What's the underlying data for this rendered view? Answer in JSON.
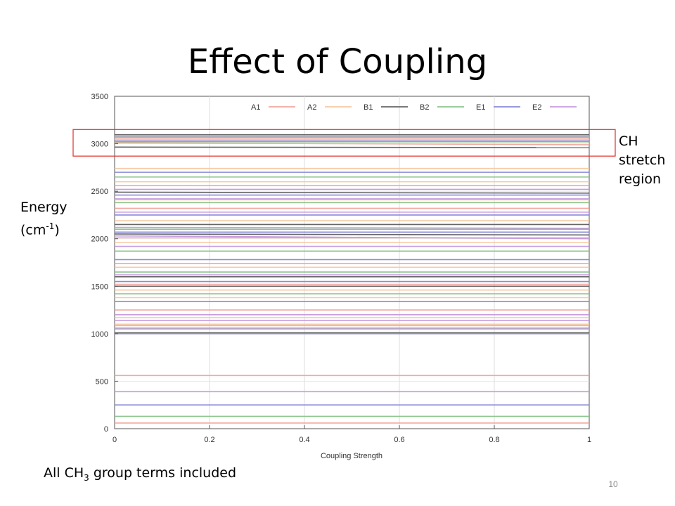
{
  "slide": {
    "title": "Effect of Coupling",
    "energy_label": "Energy",
    "energy_unit_pre": "(cm",
    "energy_unit_sup": "-1",
    "energy_unit_post": ")",
    "region_line1": "CH",
    "region_line2": "stretch",
    "region_line3": "region",
    "note_pre": "All CH",
    "note_sub": "3",
    "note_post": " group terms included",
    "page_number": "10"
  },
  "colors": {
    "A1": "#f2a8a0",
    "A2": "#f7c9a3",
    "B1": "#666666",
    "B2": "#8dc48d",
    "E1": "#8a8ad8",
    "E2": "#c79be0",
    "highlight": "#e0302a"
  },
  "chart_data": {
    "type": "line",
    "xlabel": "Coupling Strength",
    "ylabel": "",
    "xlim": [
      0,
      1
    ],
    "ylim": [
      0,
      3500
    ],
    "xticks": [
      0,
      0.2,
      0.4,
      0.6,
      0.8,
      1
    ],
    "yticks": [
      0,
      500,
      1000,
      1500,
      2000,
      2500,
      3000,
      3500
    ],
    "grid": true,
    "legend_position": "top",
    "legend": [
      "A1",
      "A2",
      "B1",
      "B2",
      "E1",
      "E2"
    ],
    "x": [
      0,
      1
    ],
    "series": [
      {
        "name": "A1",
        "levels": [
          [
            3060,
            3060
          ],
          [
            3010,
            2990
          ],
          [
            2560,
            2560
          ],
          [
            2320,
            2320
          ],
          [
            2010,
            2010
          ],
          [
            1740,
            1740
          ],
          [
            1520,
            1520
          ],
          [
            1250,
            1250
          ],
          [
            1085,
            1085
          ],
          [
            560,
            560
          ],
          [
            60,
            60
          ]
        ]
      },
      {
        "name": "A2",
        "levels": [
          [
            3045,
            3045
          ],
          [
            2740,
            2740
          ],
          [
            2600,
            2600
          ],
          [
            2410,
            2410
          ],
          [
            2190,
            2190
          ],
          [
            1960,
            1960
          ],
          [
            1700,
            1700
          ],
          [
            1460,
            1460
          ],
          [
            1380,
            1380
          ],
          [
            1170,
            1170
          ],
          [
            1100,
            1100
          ]
        ]
      },
      {
        "name": "B1",
        "levels": [
          [
            3095,
            3095
          ],
          [
            2965,
            2960
          ],
          [
            2490,
            2480
          ],
          [
            2150,
            2150
          ],
          [
            2050,
            2040
          ],
          [
            1600,
            1600
          ],
          [
            1500,
            1500
          ],
          [
            1010,
            1010
          ]
        ]
      },
      {
        "name": "B2",
        "levels": [
          [
            3080,
            3080
          ],
          [
            3020,
            3020
          ],
          [
            2650,
            2650
          ],
          [
            2380,
            2380
          ],
          [
            2100,
            2100
          ],
          [
            1870,
            1870
          ],
          [
            1650,
            1650
          ],
          [
            1420,
            1420
          ],
          [
            1060,
            1060
          ],
          [
            130,
            130
          ]
        ]
      },
      {
        "name": "E1",
        "levels": [
          [
            3030,
            3030
          ],
          [
            2700,
            2700
          ],
          [
            2460,
            2460
          ],
          [
            2250,
            2250
          ],
          [
            2070,
            2070
          ],
          [
            1780,
            1780
          ],
          [
            1550,
            1550
          ],
          [
            1340,
            1340
          ],
          [
            1000,
            1000
          ],
          [
            250,
            250
          ]
        ]
      },
      {
        "name": "E2",
        "levels": [
          [
            3070,
            3070
          ],
          [
            2520,
            2520
          ],
          [
            2420,
            2420
          ],
          [
            2280,
            2280
          ],
          [
            2120,
            2110
          ],
          [
            2030,
            2000
          ],
          [
            1920,
            1920
          ],
          [
            1620,
            1620
          ],
          [
            1200,
            1200
          ],
          [
            1140,
            1140
          ],
          [
            1050,
            1050
          ],
          [
            390,
            390
          ]
        ]
      }
    ],
    "annotation_box": {
      "ymin": 2870,
      "ymax": 3150
    }
  }
}
